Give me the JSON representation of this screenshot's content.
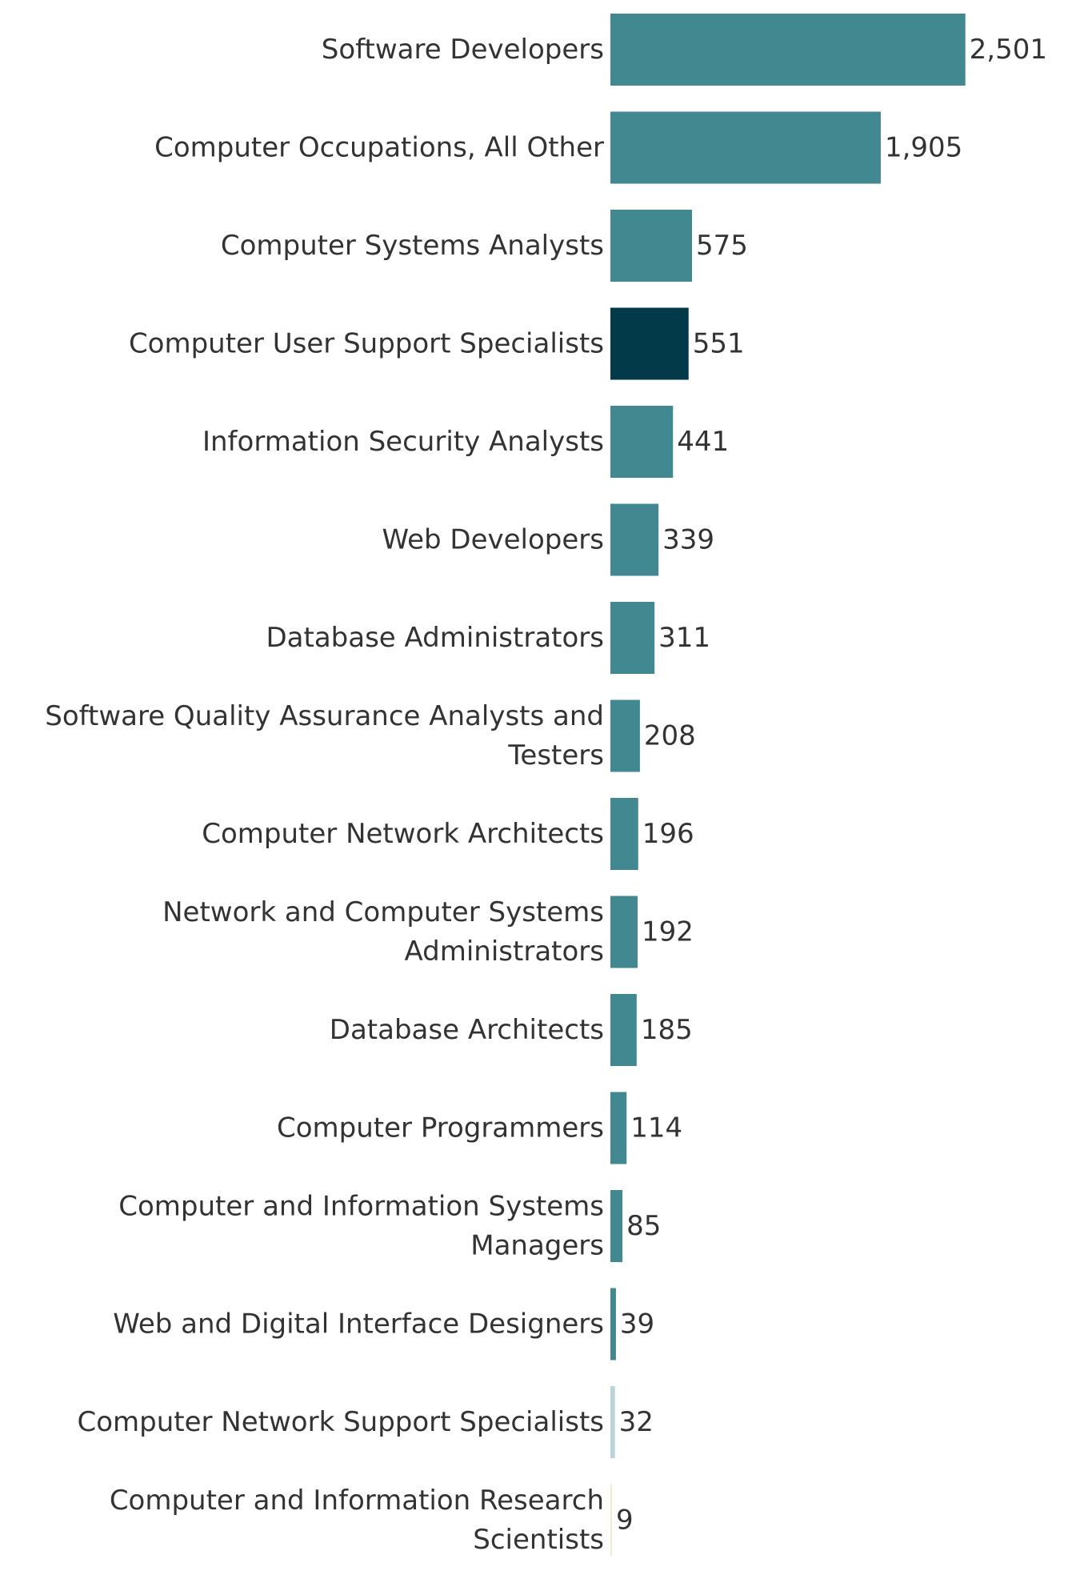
{
  "chart_data": {
    "type": "bar",
    "orientation": "horizontal",
    "title": "",
    "xlabel": "",
    "ylabel": "",
    "xlim": [
      0,
      2700
    ],
    "grid": false,
    "legend": "none",
    "categories": [
      "Software Developers",
      "Computer Occupations, All Other",
      "Computer Systems Analysts",
      "Computer User Support Specialists",
      "Information Security Analysts",
      "Web Developers",
      "Database Administrators",
      "Software Quality Assurance Analysts and Testers",
      "Computer Network Architects",
      "Network and Computer Systems Administrators",
      "Database Architects",
      "Computer Programmers",
      "Computer and Information Systems Managers",
      "Web and Digital Interface Designers",
      "Computer Network Support Specialists",
      "Computer and Information Research Scientists"
    ],
    "category_label_lines": [
      [
        "Software Developers"
      ],
      [
        "Computer Occupations, All Other"
      ],
      [
        "Computer Systems Analysts"
      ],
      [
        "Computer User Support Specialists"
      ],
      [
        "Information Security Analysts"
      ],
      [
        "Web Developers"
      ],
      [
        "Database Administrators"
      ],
      [
        "Software Quality Assurance Analysts and",
        "Testers"
      ],
      [
        "Computer Network Architects"
      ],
      [
        "Network and Computer Systems",
        "Administrators"
      ],
      [
        "Database Architects"
      ],
      [
        "Computer Programmers"
      ],
      [
        "Computer and Information Systems",
        "Managers"
      ],
      [
        "Web and Digital Interface Designers"
      ],
      [
        "Computer Network Support Specialists"
      ],
      [
        "Computer and Information Research",
        "Scientists"
      ]
    ],
    "values": [
      2501,
      1905,
      575,
      551,
      441,
      339,
      311,
      208,
      196,
      192,
      185,
      114,
      85,
      39,
      32,
      9
    ],
    "value_labels": [
      "2,501",
      "1,905",
      "575",
      "551",
      "441",
      "339",
      "311",
      "208",
      "196",
      "192",
      "185",
      "114",
      "85",
      "39",
      "32",
      "9"
    ],
    "bar_colors": [
      "#428891",
      "#428891",
      "#428891",
      "#023a4a",
      "#428891",
      "#428891",
      "#428891",
      "#428891",
      "#428891",
      "#428891",
      "#428891",
      "#428891",
      "#428891",
      "#428891",
      "#b9d3d6",
      "#f3ecd2"
    ]
  }
}
